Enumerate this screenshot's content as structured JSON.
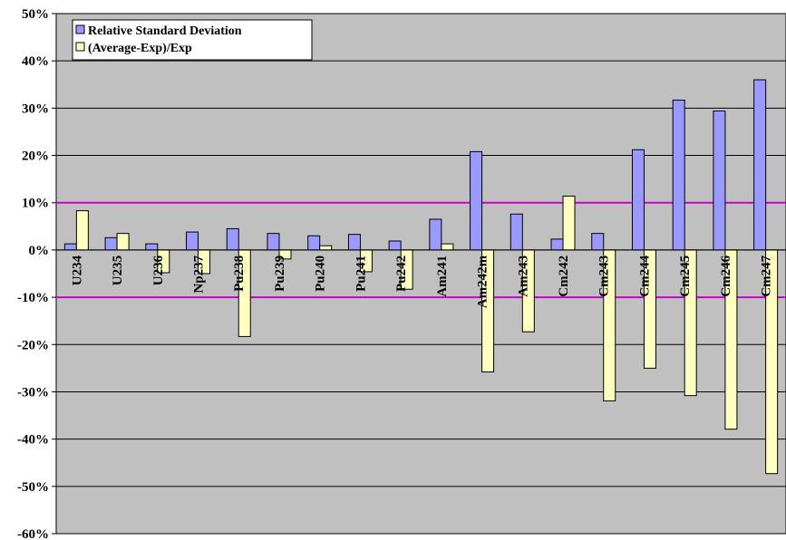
{
  "chart_data": {
    "type": "bar",
    "categories": [
      "U234",
      "U235",
      "U236",
      "Np237",
      "Pu238",
      "Pu239",
      "Pu240",
      "Pu241",
      "Pu242",
      "Am241",
      "Am242m",
      "Am243",
      "Cm242",
      "Cm243",
      "Cm244",
      "Cm245",
      "Cm246",
      "Cm247"
    ],
    "series": [
      {
        "name": "Relative Standard Deviation",
        "color": "#9999ff",
        "values": [
          1.3,
          2.6,
          1.3,
          3.8,
          4.5,
          3.5,
          3.0,
          3.3,
          1.9,
          6.5,
          20.8,
          7.6,
          2.3,
          3.5,
          21.2,
          31.7,
          29.4,
          36.0
        ]
      },
      {
        "name": "(Average-Exp)/Exp",
        "color": "#ffffc0",
        "values": [
          8.3,
          3.5,
          -4.8,
          -5.0,
          -18.3,
          -1.9,
          0.9,
          -4.6,
          -8.3,
          1.3,
          -25.8,
          -17.3,
          11.4,
          -31.9,
          -25.0,
          -30.8,
          -37.9,
          -47.3
        ]
      }
    ],
    "yticks": [
      "50%",
      "40%",
      "30%",
      "20%",
      "10%",
      "0%",
      "-10%",
      "-20%",
      "-30%",
      "-40%",
      "-50%",
      "-60%"
    ],
    "ylim": [
      -60,
      50
    ],
    "reference_lines": [
      10,
      -10
    ],
    "reference_line_color": "#cc00cc",
    "plot_background": "#c0c0c0",
    "grid": true,
    "legend_position": "top-left",
    "title": "",
    "xlabel": "",
    "ylabel": ""
  }
}
